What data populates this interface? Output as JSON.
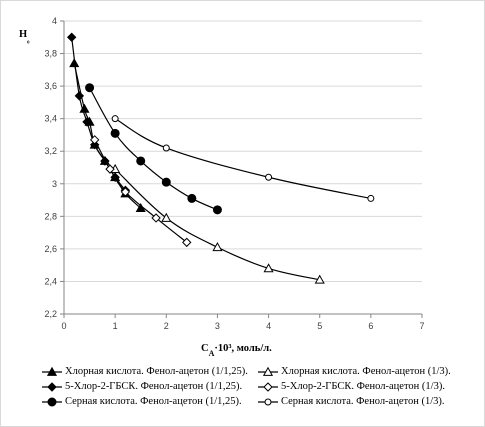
{
  "chart_data": {
    "type": "line",
    "ylabel": "H₀",
    "xlabel_main": "C",
    "xlabel_sub": "A",
    "xlabel_rest": "·10³,  моль/л.",
    "xlim": [
      0,
      7
    ],
    "ylim": [
      2.2,
      4.0
    ],
    "xticks": [
      0,
      1,
      2,
      3,
      4,
      5,
      6,
      7
    ],
    "yticks": [
      2.2,
      2.4,
      2.6,
      2.8,
      3.0,
      3.2,
      3.4,
      3.6,
      3.8,
      4.0
    ],
    "ytick_labels": [
      "2,2",
      "2,4",
      "2,6",
      "2,8",
      "3",
      "3,2",
      "3,4",
      "3,6",
      "3,8",
      "4"
    ],
    "xtick_labels": [
      "0",
      "1",
      "2",
      "3",
      "4",
      "5",
      "6",
      "7"
    ],
    "grid": "horizontal",
    "legend_position": "bottom",
    "series": [
      {
        "name": "Хлорная кислота. Фенол-ацетон (1/1,25).",
        "marker": "triangle",
        "filled": true,
        "x": [
          0.2,
          0.4,
          0.5,
          0.6,
          0.8,
          1.0,
          1.2,
          1.5
        ],
        "y": [
          3.74,
          3.46,
          3.38,
          3.24,
          3.14,
          3.04,
          2.94,
          2.85
        ]
      },
      {
        "name": "Хлорная кислота. Фенол-ацетон (1/3).",
        "marker": "triangle",
        "filled": false,
        "x": [
          1.0,
          2.0,
          3.0,
          4.0,
          5.0
        ],
        "y": [
          3.09,
          2.79,
          2.61,
          2.48,
          2.41
        ]
      },
      {
        "name": "5-Хлор-2-ГБСК. Фенол-ацетон (1/1,25).",
        "marker": "diamond",
        "filled": true,
        "x": [
          0.15,
          0.3,
          0.45,
          0.6,
          0.8,
          1.0,
          1.2
        ],
        "y": [
          3.9,
          3.54,
          3.38,
          3.24,
          3.14,
          3.04,
          2.96
        ]
      },
      {
        "name": "5-Хлор-2-ГБСК. Фенол-ацетон (1/3).",
        "marker": "diamond",
        "filled": false,
        "x": [
          0.6,
          0.9,
          1.2,
          1.8,
          2.4
        ],
        "y": [
          3.27,
          3.09,
          2.95,
          2.79,
          2.64
        ]
      },
      {
        "name": "Серная кислота. Фенол-ацетон (1/1,25).",
        "marker": "circle",
        "filled": true,
        "x": [
          0.5,
          1.0,
          1.5,
          2.0,
          2.5,
          3.0
        ],
        "y": [
          3.59,
          3.31,
          3.14,
          3.01,
          2.91,
          2.84
        ]
      },
      {
        "name": "Серная кислота. Фенол-ацетон (1/3).",
        "marker": "circle",
        "filled": false,
        "x": [
          1.0,
          2.0,
          4.0,
          6.0
        ],
        "y": [
          3.4,
          3.22,
          3.04,
          2.91
        ]
      }
    ]
  },
  "colors": {
    "line": "#000000",
    "grid": "#d9d9d9",
    "axis": "#868686",
    "tick_text": "#404040"
  }
}
